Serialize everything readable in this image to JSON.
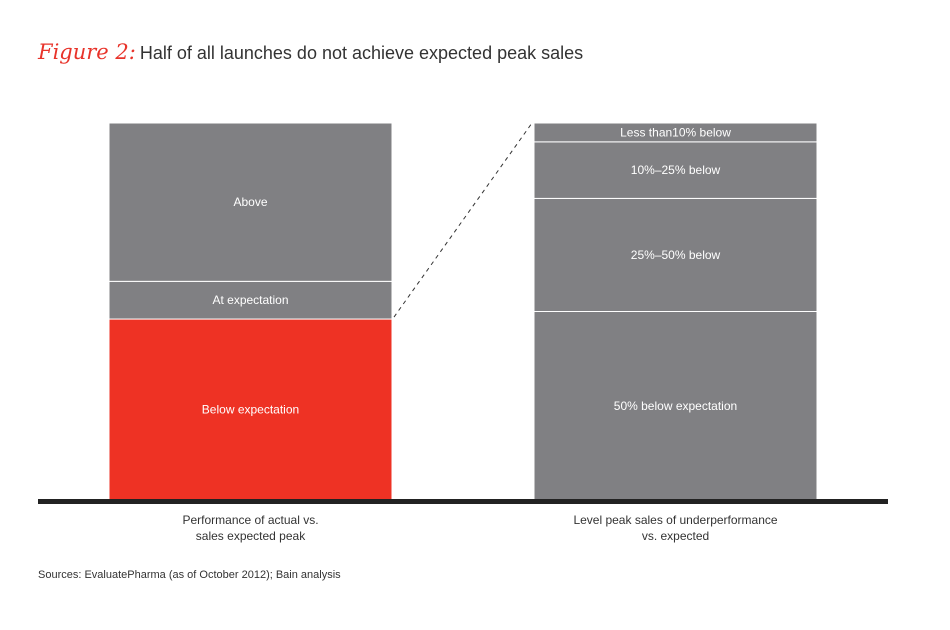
{
  "header": {
    "figure_label": "Figure 2:",
    "title": "Half of all launches do not achieve expected peak sales"
  },
  "source": "Sources: EvaluatePharma (as of October 2012); Bain analysis",
  "colors": {
    "gray": "#808083",
    "red": "#ee3224",
    "baseline": "#222222",
    "label": "#ffffff",
    "axis_text": "#333333"
  },
  "chart_data": [
    {
      "type": "bar",
      "stacked": true,
      "category": "Performance of actual vs. sales expected peak",
      "category_lines": [
        "Performance of actual vs.",
        "sales expected peak"
      ],
      "ylim": [
        0,
        100
      ],
      "segments": [
        {
          "label": "Below expectation",
          "value": 48,
          "color": "#ee3224"
        },
        {
          "label": "At expectation",
          "value": 10,
          "color": "#808083"
        },
        {
          "label": "Above",
          "value": 42,
          "color": "#808083"
        }
      ]
    },
    {
      "type": "bar",
      "stacked": true,
      "category": "Level peak sales of underperformance vs. expected",
      "category_lines": [
        "Level peak sales of underperformance",
        "vs. expected"
      ],
      "ylim": [
        0,
        100
      ],
      "segments": [
        {
          "label": "50% below expectation",
          "value": 50,
          "color": "#808083"
        },
        {
          "label": "25%–50% below",
          "value": 30,
          "color": "#808083"
        },
        {
          "label": "10%–25% below",
          "value": 15,
          "color": "#808083"
        },
        {
          "label": "Less than10% below",
          "value": 5,
          "color": "#808083"
        }
      ]
    }
  ]
}
